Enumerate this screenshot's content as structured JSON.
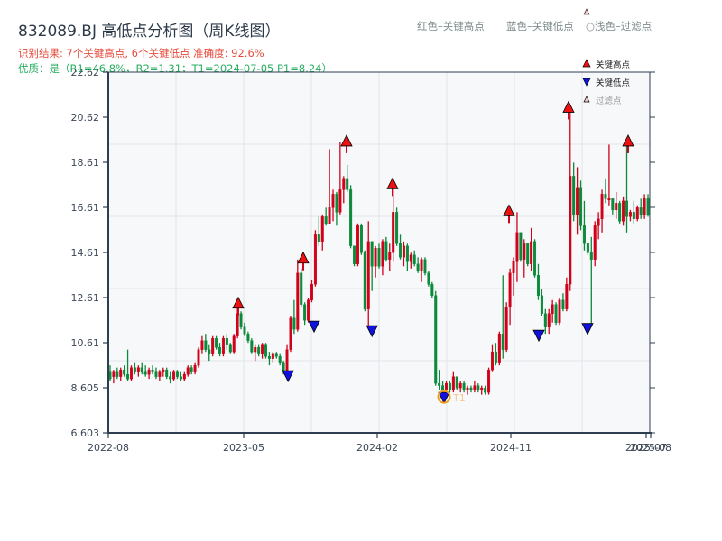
{
  "header": {
    "title": "832089.BJ 高低点分析图（周K线图）",
    "summary": "识别结果: 7个关键高点, 6个关键低点   准确度: 92.6%",
    "quality": "优质：是（R1=46.8%，R2=1.31；T1=2024-07-05 P1=8.24）",
    "legend_red": "红色–关键高点",
    "legend_blue": "蓝色–关键低点",
    "legend_light": "○浅色–过滤点"
  },
  "legend_box": {
    "high": "关键高点",
    "low": "关键低点",
    "filtered": "过滤点"
  },
  "colors": {
    "up": "#d0021b",
    "down": "#0a8a3a",
    "high_marker": "#ee1111",
    "low_marker": "#1111dd",
    "t1_ring": "#f39c12",
    "axis": "#2c3e50",
    "plot_bg": "#f7f8fa",
    "grid": "#e2e4e8"
  },
  "chart_data": {
    "type": "candlestick",
    "title": "832089.BJ 高低点分析图（周K线图）",
    "xlabel": "",
    "ylabel": "",
    "ylim": [
      6.603,
      22.62
    ],
    "yticks": [
      "22.62",
      "20.62",
      "18.61",
      "16.61",
      "14.61",
      "12.61",
      "10.61",
      "8.605",
      "6.603"
    ],
    "xticks": [
      "2022-08",
      "2023-05",
      "2024-02",
      "2024-11",
      "2025-07",
      "2025-08"
    ],
    "legend": [
      "关键高点",
      "关键低点",
      "过滤点"
    ],
    "key_highs": [
      {
        "x_pct": 0.24,
        "price": 12.3
      },
      {
        "x_pct": 0.36,
        "price": 14.3
      },
      {
        "x_pct": 0.44,
        "price": 19.5
      },
      {
        "x_pct": 0.525,
        "price": 17.6
      },
      {
        "x_pct": 0.74,
        "price": 16.4
      },
      {
        "x_pct": 0.85,
        "price": 21.0
      },
      {
        "x_pct": 0.96,
        "price": 19.5
      }
    ],
    "key_lows": [
      {
        "x_pct": 0.332,
        "price": 9.2
      },
      {
        "x_pct": 0.38,
        "price": 11.4
      },
      {
        "x_pct": 0.487,
        "price": 11.2
      },
      {
        "x_pct": 0.62,
        "price": 8.24
      },
      {
        "x_pct": 0.795,
        "price": 11.0
      },
      {
        "x_pct": 0.885,
        "price": 11.3
      }
    ],
    "annotation": {
      "label": "T1",
      "date": "2024-07-05",
      "price": 8.24
    },
    "candles": [
      [
        9.3,
        9.6,
        8.9,
        9.0
      ],
      [
        9.1,
        9.4,
        8.8,
        9.3
      ],
      [
        9.3,
        9.5,
        9.0,
        9.1
      ],
      [
        9.1,
        9.5,
        8.9,
        9.4
      ],
      [
        9.4,
        9.6,
        9.1,
        9.2
      ],
      [
        9.2,
        10.3,
        8.9,
        9.0
      ],
      [
        9.0,
        9.6,
        8.9,
        9.5
      ],
      [
        9.5,
        9.7,
        9.2,
        9.3
      ],
      [
        9.3,
        9.6,
        9.1,
        9.5
      ],
      [
        9.5,
        9.7,
        9.2,
        9.3
      ],
      [
        9.3,
        9.6,
        9.1,
        9.2
      ],
      [
        9.2,
        9.5,
        9.0,
        9.4
      ],
      [
        9.4,
        9.6,
        9.2,
        9.3
      ],
      [
        9.3,
        9.5,
        9.0,
        9.1
      ],
      [
        9.1,
        9.4,
        8.9,
        9.3
      ],
      [
        9.3,
        9.5,
        9.1,
        9.4
      ],
      [
        9.4,
        9.5,
        9.0,
        9.1
      ],
      [
        9.1,
        9.3,
        8.8,
        9.0
      ],
      [
        9.0,
        9.4,
        8.9,
        9.3
      ],
      [
        9.3,
        9.4,
        9.0,
        9.1
      ],
      [
        9.1,
        9.3,
        8.9,
        9.0
      ],
      [
        9.0,
        9.3,
        8.9,
        9.2
      ],
      [
        9.2,
        9.6,
        9.1,
        9.5
      ],
      [
        9.5,
        9.6,
        9.2,
        9.3
      ],
      [
        9.3,
        9.7,
        9.2,
        9.6
      ],
      [
        9.6,
        10.4,
        9.5,
        10.3
      ],
      [
        10.3,
        10.9,
        10.1,
        10.7
      ],
      [
        10.7,
        11.0,
        10.2,
        10.3
      ],
      [
        10.3,
        10.5,
        9.8,
        10.1
      ],
      [
        10.1,
        10.9,
        10.0,
        10.8
      ],
      [
        10.8,
        10.9,
        10.3,
        10.4
      ],
      [
        10.4,
        10.6,
        10.0,
        10.1
      ],
      [
        10.1,
        10.9,
        10.0,
        10.8
      ],
      [
        10.8,
        11.0,
        10.3,
        10.5
      ],
      [
        10.5,
        10.6,
        10.1,
        10.2
      ],
      [
        10.2,
        11.0,
        10.1,
        10.9
      ],
      [
        10.9,
        12.3,
        10.8,
        11.9
      ],
      [
        11.9,
        12.0,
        11.2,
        11.3
      ],
      [
        11.3,
        11.5,
        10.9,
        11.0
      ],
      [
        11.0,
        11.1,
        10.6,
        10.7
      ],
      [
        10.7,
        10.8,
        10.1,
        10.2
      ],
      [
        10.2,
        10.5,
        9.8,
        10.4
      ],
      [
        10.4,
        10.5,
        10.0,
        10.1
      ],
      [
        10.1,
        10.6,
        9.9,
        10.5
      ],
      [
        10.5,
        10.6,
        9.9,
        10.0
      ],
      [
        10.0,
        10.2,
        9.6,
        9.9
      ],
      [
        9.9,
        10.2,
        9.7,
        10.1
      ],
      [
        10.1,
        10.2,
        9.9,
        10.0
      ],
      [
        10.0,
        10.1,
        9.6,
        9.7
      ],
      [
        9.7,
        9.8,
        9.2,
        9.3
      ],
      [
        9.3,
        10.5,
        9.2,
        10.3
      ],
      [
        10.3,
        11.8,
        10.2,
        11.7
      ],
      [
        11.7,
        12.5,
        11.0,
        11.2
      ],
      [
        11.2,
        14.3,
        11.1,
        13.7
      ],
      [
        13.7,
        13.9,
        12.2,
        12.3
      ],
      [
        12.3,
        12.4,
        11.4,
        11.6
      ],
      [
        11.6,
        12.6,
        11.5,
        12.5
      ],
      [
        12.5,
        13.4,
        12.4,
        13.2
      ],
      [
        13.2,
        15.6,
        13.1,
        15.4
      ],
      [
        15.4,
        16.2,
        14.9,
        15.1
      ],
      [
        15.1,
        16.3,
        14.7,
        16.2
      ],
      [
        16.2,
        16.6,
        15.8,
        15.9
      ],
      [
        15.9,
        19.2,
        15.9,
        16.6
      ],
      [
        16.6,
        17.4,
        16.0,
        17.2
      ],
      [
        17.2,
        17.3,
        15.8,
        16.4
      ],
      [
        16.4,
        19.5,
        16.3,
        17.4
      ],
      [
        17.4,
        18.0,
        16.8,
        17.9
      ],
      [
        17.9,
        18.5,
        17.3,
        17.4
      ],
      [
        17.4,
        17.6,
        14.8,
        14.9
      ],
      [
        14.9,
        14.9,
        14.0,
        14.1
      ],
      [
        14.1,
        15.9,
        14.0,
        15.8
      ],
      [
        15.8,
        15.9,
        14.5,
        14.6
      ],
      [
        14.6,
        14.7,
        12.0,
        12.1
      ],
      [
        12.1,
        16.0,
        11.2,
        15.1
      ],
      [
        15.1,
        14.1,
        12.9,
        14.0
      ],
      [
        14.0,
        14.9,
        13.5,
        14.8
      ],
      [
        14.8,
        15.0,
        13.9,
        14.0
      ],
      [
        14.0,
        15.2,
        13.6,
        15.1
      ],
      [
        15.1,
        15.3,
        14.2,
        14.3
      ],
      [
        14.3,
        15.0,
        13.8,
        14.6
      ],
      [
        14.6,
        17.6,
        14.2,
        16.4
      ],
      [
        16.4,
        16.6,
        14.9,
        15.0
      ],
      [
        15.0,
        15.4,
        14.3,
        14.4
      ],
      [
        14.4,
        15.1,
        14.0,
        14.9
      ],
      [
        14.9,
        15.0,
        13.8,
        14.2
      ],
      [
        14.2,
        14.6,
        13.9,
        14.5
      ],
      [
        14.5,
        14.7,
        14.0,
        14.1
      ],
      [
        14.1,
        14.4,
        13.7,
        13.8
      ],
      [
        13.8,
        14.4,
        13.3,
        14.3
      ],
      [
        14.3,
        14.4,
        13.6,
        13.7
      ],
      [
        13.7,
        13.8,
        13.1,
        13.2
      ],
      [
        13.2,
        13.3,
        12.6,
        12.7
      ],
      [
        12.7,
        12.9,
        8.7,
        8.8
      ],
      [
        8.8,
        9.4,
        8.5,
        8.7
      ],
      [
        8.7,
        8.9,
        8.24,
        8.5
      ],
      [
        8.5,
        8.9,
        8.3,
        8.8
      ],
      [
        8.8,
        8.9,
        8.4,
        8.5
      ],
      [
        8.5,
        9.3,
        8.4,
        9.1
      ],
      [
        9.1,
        9.1,
        8.5,
        8.6
      ],
      [
        8.6,
        8.9,
        8.4,
        8.8
      ],
      [
        8.8,
        8.9,
        8.4,
        8.5
      ],
      [
        8.5,
        8.7,
        8.3,
        8.6
      ],
      [
        8.6,
        8.7,
        8.4,
        8.5
      ],
      [
        8.5,
        8.9,
        8.4,
        8.7
      ],
      [
        8.7,
        8.8,
        8.4,
        8.5
      ],
      [
        8.5,
        8.7,
        8.3,
        8.6
      ],
      [
        8.6,
        8.7,
        8.3,
        8.4
      ],
      [
        8.4,
        9.5,
        8.3,
        9.4
      ],
      [
        9.4,
        10.5,
        9.3,
        10.2
      ],
      [
        10.2,
        10.6,
        9.6,
        9.7
      ],
      [
        9.7,
        11.1,
        9.6,
        11.0
      ],
      [
        11.0,
        13.6,
        9.9,
        10.3
      ],
      [
        10.3,
        12.4,
        10.2,
        12.2
      ],
      [
        12.2,
        13.9,
        11.4,
        13.7
      ],
      [
        13.7,
        14.4,
        12.7,
        14.2
      ],
      [
        14.2,
        16.4,
        13.3,
        15.5
      ],
      [
        15.5,
        15.4,
        14.2,
        14.3
      ],
      [
        14.3,
        15.2,
        13.5,
        15.0
      ],
      [
        15.0,
        15.0,
        14.0,
        14.1
      ],
      [
        14.1,
        15.7,
        13.8,
        15.1
      ],
      [
        15.1,
        15.2,
        13.5,
        13.6
      ],
      [
        13.6,
        14.1,
        12.5,
        12.7
      ],
      [
        12.7,
        13.0,
        11.8,
        11.9
      ],
      [
        11.9,
        12.1,
        11.0,
        11.3
      ],
      [
        11.3,
        12.1,
        11.0,
        11.9
      ],
      [
        11.9,
        12.5,
        11.5,
        12.3
      ],
      [
        12.3,
        12.4,
        11.4,
        11.5
      ],
      [
        11.5,
        12.6,
        11.4,
        12.5
      ],
      [
        12.5,
        12.8,
        12.0,
        12.1
      ],
      [
        12.1,
        13.5,
        12.0,
        13.2
      ],
      [
        13.2,
        21.0,
        12.9,
        18.0
      ],
      [
        18.0,
        18.6,
        16.0,
        16.3
      ],
      [
        16.3,
        18.4,
        15.4,
        17.5
      ],
      [
        17.5,
        17.8,
        15.6,
        15.8
      ],
      [
        15.8,
        16.9,
        14.7,
        15.0
      ],
      [
        15.0,
        14.8,
        14.5,
        14.6
      ],
      [
        14.6,
        15.3,
        11.3,
        14.3
      ],
      [
        14.3,
        16.0,
        14.0,
        15.8
      ],
      [
        15.8,
        16.4,
        15.2,
        16.1
      ],
      [
        16.1,
        17.4,
        15.5,
        17.2
      ],
      [
        17.2,
        17.9,
        16.8,
        17.0
      ],
      [
        17.0,
        19.4,
        16.7,
        17.0
      ],
      [
        17.0,
        16.9,
        16.3,
        16.5
      ],
      [
        16.5,
        17.3,
        16.1,
        16.8
      ],
      [
        16.8,
        16.9,
        15.9,
        16.0
      ],
      [
        16.0,
        17.1,
        15.8,
        16.9
      ],
      [
        16.9,
        19.5,
        15.5,
        16.2
      ],
      [
        16.2,
        16.5,
        16.0,
        16.4
      ],
      [
        16.4,
        16.9,
        15.9,
        16.1
      ],
      [
        16.1,
        16.7,
        16.0,
        16.6
      ],
      [
        16.6,
        17.0,
        16.1,
        16.3
      ],
      [
        16.3,
        17.2,
        16.1,
        17.0
      ],
      [
        17.0,
        17.2,
        16.2,
        16.3
      ]
    ]
  }
}
